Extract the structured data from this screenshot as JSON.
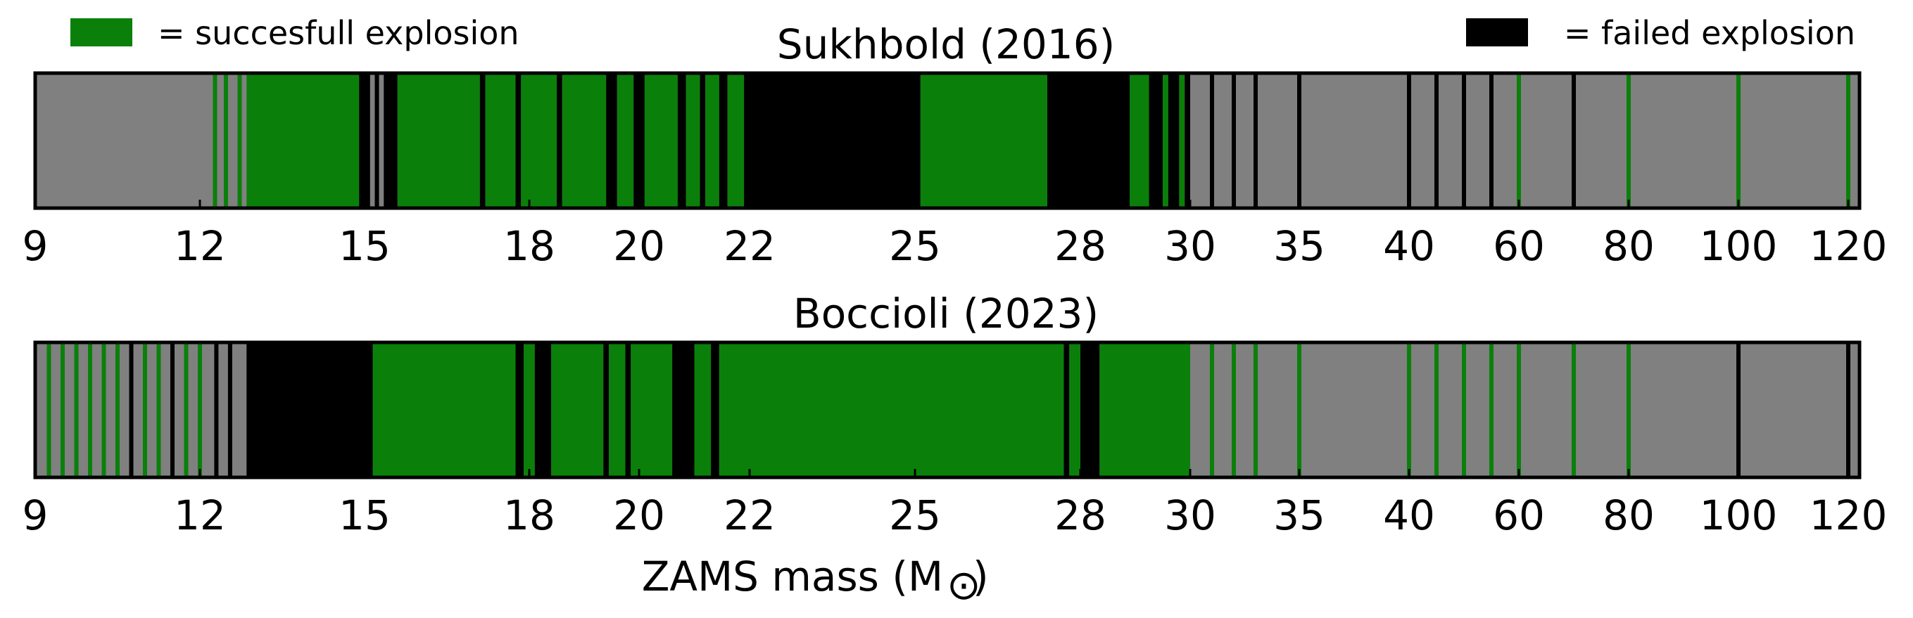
{
  "chart_data": {
    "type": "bar",
    "xlabel": "ZAMS mass (M",
    "xlabel_symbol": "⊙",
    "xlabel_close": ")",
    "tick_labels": [
      "9",
      "12",
      "15",
      "18",
      "20",
      "22",
      "25",
      "28",
      "30",
      "35",
      "40",
      "60",
      "80",
      "100",
      "120"
    ],
    "legend": {
      "success_label": "= succesfull explosion",
      "failed_label": "= failed explosion"
    },
    "colors": {
      "success": "#0a800a",
      "failed": "#000000",
      "background": "#808080",
      "frame": "#000000"
    },
    "panels": [
      {
        "title": "Sukhbold (2016)",
        "ranges": [
          {
            "from": 12.25,
            "to": 12.3,
            "outcome": "success"
          },
          {
            "from": 12.45,
            "to": 12.5,
            "outcome": "success"
          },
          {
            "from": 12.7,
            "to": 12.75,
            "outcome": "success"
          },
          {
            "from": 12.85,
            "to": 14.9,
            "outcome": "success"
          },
          {
            "from": 14.9,
            "to": 15.1,
            "outcome": "failed"
          },
          {
            "from": 15.2,
            "to": 15.25,
            "outcome": "failed"
          },
          {
            "from": 15.35,
            "to": 15.6,
            "outcome": "failed"
          },
          {
            "from": 15.6,
            "to": 17.1,
            "outcome": "success"
          },
          {
            "from": 17.1,
            "to": 17.2,
            "outcome": "failed"
          },
          {
            "from": 17.2,
            "to": 17.75,
            "outcome": "success"
          },
          {
            "from": 17.75,
            "to": 17.85,
            "outcome": "failed"
          },
          {
            "from": 17.85,
            "to": 18.5,
            "outcome": "success"
          },
          {
            "from": 18.5,
            "to": 18.6,
            "outcome": "failed"
          },
          {
            "from": 18.6,
            "to": 19.4,
            "outcome": "success"
          },
          {
            "from": 19.4,
            "to": 19.6,
            "outcome": "failed"
          },
          {
            "from": 19.6,
            "to": 19.9,
            "outcome": "success"
          },
          {
            "from": 19.9,
            "to": 20.1,
            "outcome": "failed"
          },
          {
            "from": 20.1,
            "to": 20.7,
            "outcome": "success"
          },
          {
            "from": 20.7,
            "to": 20.85,
            "outcome": "failed"
          },
          {
            "from": 20.85,
            "to": 21.1,
            "outcome": "success"
          },
          {
            "from": 21.1,
            "to": 21.2,
            "outcome": "failed"
          },
          {
            "from": 21.2,
            "to": 21.45,
            "outcome": "success"
          },
          {
            "from": 21.45,
            "to": 21.6,
            "outcome": "failed"
          },
          {
            "from": 21.6,
            "to": 21.9,
            "outcome": "success"
          },
          {
            "from": 21.9,
            "to": 25.1,
            "outcome": "failed"
          },
          {
            "from": 25.1,
            "to": 27.4,
            "outcome": "success"
          },
          {
            "from": 27.4,
            "to": 28.9,
            "outcome": "failed"
          },
          {
            "from": 28.9,
            "to": 29.25,
            "outcome": "success"
          },
          {
            "from": 29.25,
            "to": 29.5,
            "outcome": "failed"
          },
          {
            "from": 29.5,
            "to": 29.6,
            "outcome": "success"
          },
          {
            "from": 29.6,
            "to": 29.8,
            "outcome": "failed"
          },
          {
            "from": 29.8,
            "to": 29.9,
            "outcome": "success"
          },
          {
            "from": 29.9,
            "to": 30.0,
            "outcome": "failed"
          },
          {
            "from": 31,
            "to": 31,
            "outcome": "failed"
          },
          {
            "from": 32,
            "to": 32,
            "outcome": "failed"
          },
          {
            "from": 33,
            "to": 33,
            "outcome": "failed"
          },
          {
            "from": 35,
            "to": 35,
            "outcome": "failed"
          },
          {
            "from": 40,
            "to": 40,
            "outcome": "failed"
          },
          {
            "from": 45,
            "to": 45,
            "outcome": "failed"
          },
          {
            "from": 50,
            "to": 50,
            "outcome": "failed"
          },
          {
            "from": 55,
            "to": 55,
            "outcome": "failed"
          },
          {
            "from": 60,
            "to": 60,
            "outcome": "success"
          },
          {
            "from": 70,
            "to": 70,
            "outcome": "failed"
          },
          {
            "from": 80,
            "to": 80,
            "outcome": "success"
          },
          {
            "from": 100,
            "to": 100,
            "outcome": "success"
          },
          {
            "from": 120,
            "to": 120,
            "outcome": "success"
          }
        ]
      },
      {
        "title": "Boccioli (2023)",
        "ranges": [
          {
            "from": 9.25,
            "to": 9.25,
            "outcome": "success"
          },
          {
            "from": 9.5,
            "to": 9.5,
            "outcome": "success"
          },
          {
            "from": 9.75,
            "to": 9.75,
            "outcome": "success"
          },
          {
            "from": 10.0,
            "to": 10.0,
            "outcome": "success"
          },
          {
            "from": 10.25,
            "to": 10.25,
            "outcome": "success"
          },
          {
            "from": 10.5,
            "to": 10.5,
            "outcome": "success"
          },
          {
            "from": 10.75,
            "to": 10.75,
            "outcome": "failed"
          },
          {
            "from": 11.0,
            "to": 11.0,
            "outcome": "success"
          },
          {
            "from": 11.25,
            "to": 11.25,
            "outcome": "success"
          },
          {
            "from": 11.5,
            "to": 11.5,
            "outcome": "failed"
          },
          {
            "from": 11.75,
            "to": 11.75,
            "outcome": "success"
          },
          {
            "from": 12.0,
            "to": 12.0,
            "outcome": "success"
          },
          {
            "from": 12.3,
            "to": 12.3,
            "outcome": "failed"
          },
          {
            "from": 12.55,
            "to": 12.55,
            "outcome": "failed"
          },
          {
            "from": 12.85,
            "to": 15.15,
            "outcome": "failed"
          },
          {
            "from": 15.15,
            "to": 15.5,
            "outcome": "success"
          },
          {
            "from": 15.5,
            "to": 17.75,
            "outcome": "success"
          },
          {
            "from": 17.75,
            "to": 17.9,
            "outcome": "failed"
          },
          {
            "from": 17.9,
            "to": 18.1,
            "outcome": "success"
          },
          {
            "from": 18.1,
            "to": 18.4,
            "outcome": "failed"
          },
          {
            "from": 18.4,
            "to": 19.35,
            "outcome": "success"
          },
          {
            "from": 19.35,
            "to": 19.45,
            "outcome": "failed"
          },
          {
            "from": 19.45,
            "to": 19.75,
            "outcome": "success"
          },
          {
            "from": 19.75,
            "to": 19.85,
            "outcome": "failed"
          },
          {
            "from": 19.85,
            "to": 20.6,
            "outcome": "success"
          },
          {
            "from": 20.6,
            "to": 21.0,
            "outcome": "failed"
          },
          {
            "from": 21.0,
            "to": 21.3,
            "outcome": "success"
          },
          {
            "from": 21.3,
            "to": 21.45,
            "outcome": "failed"
          },
          {
            "from": 21.45,
            "to": 27.7,
            "outcome": "success"
          },
          {
            "from": 27.7,
            "to": 27.8,
            "outcome": "failed"
          },
          {
            "from": 27.8,
            "to": 28.0,
            "outcome": "success"
          },
          {
            "from": 28.0,
            "to": 28.35,
            "outcome": "failed"
          },
          {
            "from": 28.35,
            "to": 30.0,
            "outcome": "success"
          },
          {
            "from": 31,
            "to": 31,
            "outcome": "success"
          },
          {
            "from": 32,
            "to": 32,
            "outcome": "success"
          },
          {
            "from": 33,
            "to": 33,
            "outcome": "success"
          },
          {
            "from": 35,
            "to": 35,
            "outcome": "success"
          },
          {
            "from": 40,
            "to": 40,
            "outcome": "success"
          },
          {
            "from": 45,
            "to": 45,
            "outcome": "success"
          },
          {
            "from": 50,
            "to": 50,
            "outcome": "success"
          },
          {
            "from": 55,
            "to": 55,
            "outcome": "success"
          },
          {
            "from": 60,
            "to": 60,
            "outcome": "success"
          },
          {
            "from": 70,
            "to": 70,
            "outcome": "success"
          },
          {
            "from": 80,
            "to": 80,
            "outcome": "success"
          },
          {
            "from": 100,
            "to": 100,
            "outcome": "failed"
          },
          {
            "from": 120,
            "to": 120,
            "outcome": "failed"
          }
        ]
      }
    ]
  }
}
